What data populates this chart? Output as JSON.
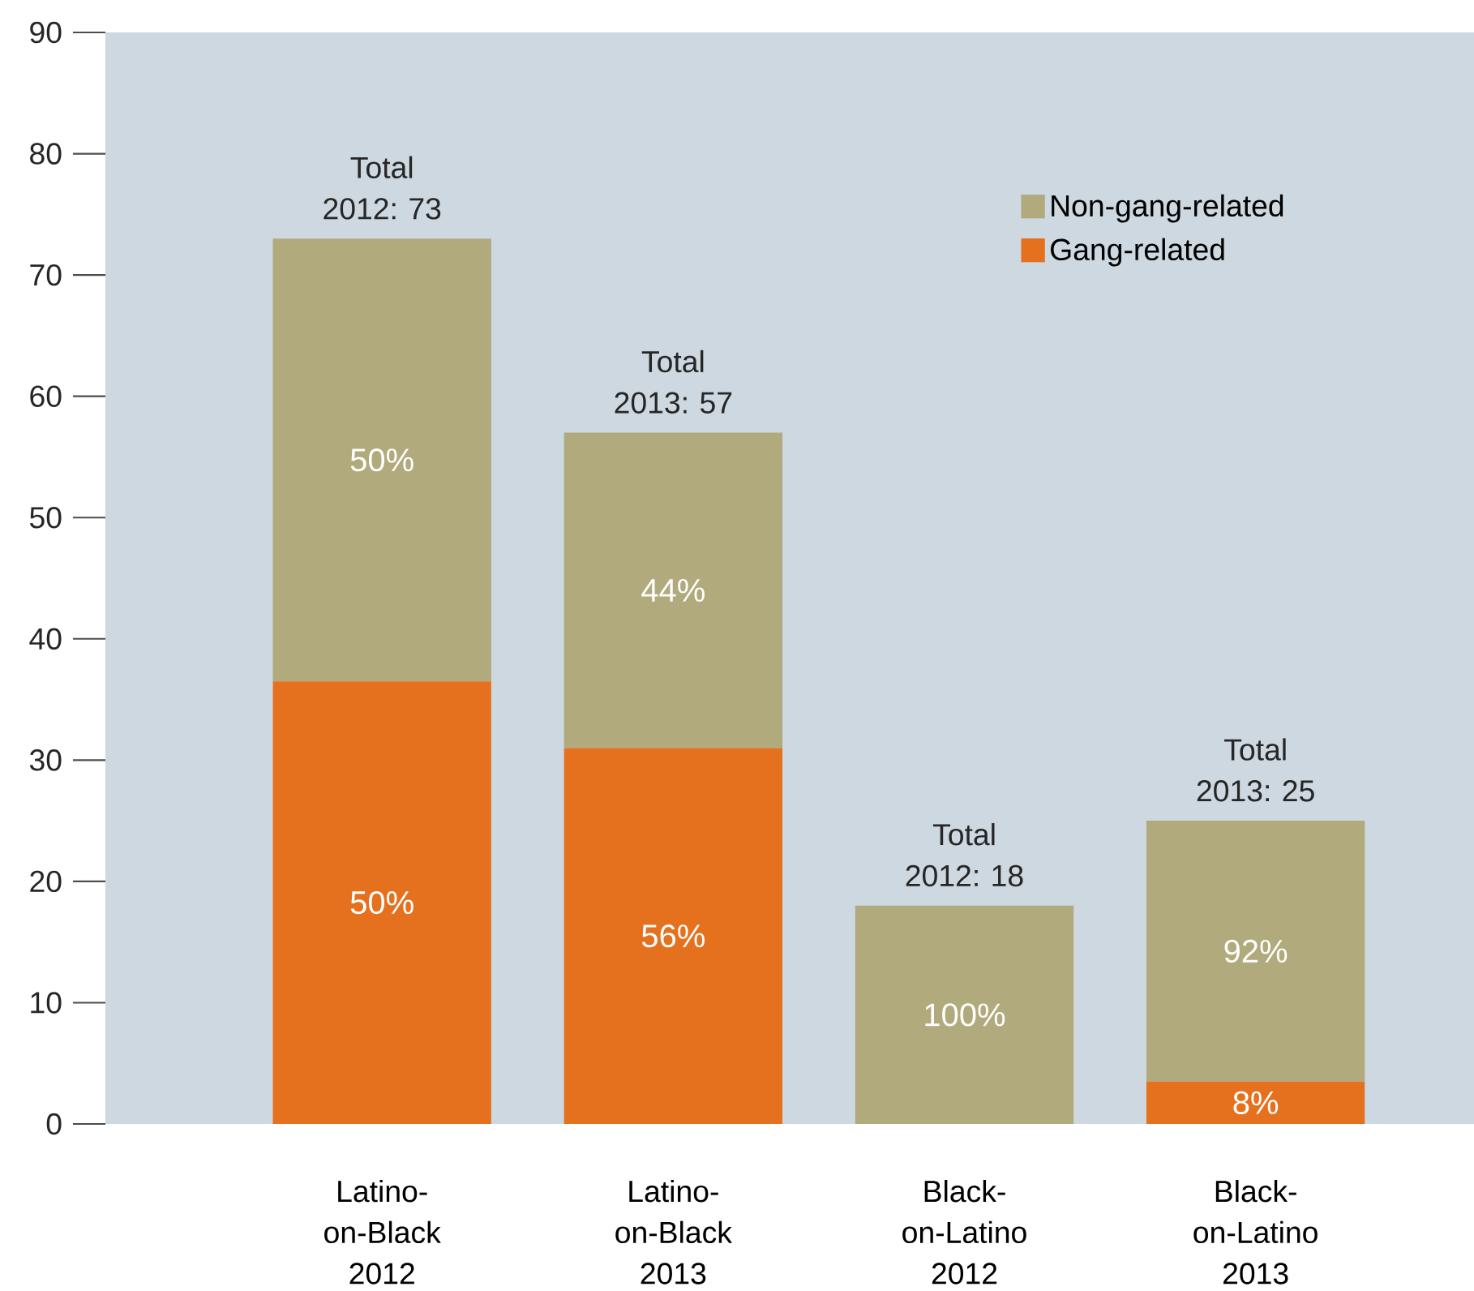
{
  "chart_data": {
    "type": "bar",
    "stacked": true,
    "categories": [
      "Latino-on-Black 2012",
      "Latino-on-Black 2013",
      "Black-on-Latino 2012",
      "Black-on-Latino 2013"
    ],
    "series": [
      {
        "name": "Gang-related",
        "color": "#e5711f",
        "values": [
          36.5,
          31,
          0,
          3.5
        ]
      },
      {
        "name": "Non-gang-related",
        "color": "#b1aa7d",
        "values": [
          36.5,
          26,
          18,
          21.5
        ]
      }
    ],
    "totals": [
      "Total 2012: 73",
      "Total 2013: 57",
      "Total 2012: 18",
      "Total 2013: 25"
    ],
    "annotations": [
      "50%",
      "50%",
      "56%",
      "44%",
      "100%",
      "8%",
      "92%"
    ],
    "ylim": [
      0,
      90
    ],
    "yticks": [
      0,
      10,
      20,
      30,
      40,
      50,
      60,
      70,
      80,
      90
    ],
    "grid": false,
    "legend": "top right"
  }
}
